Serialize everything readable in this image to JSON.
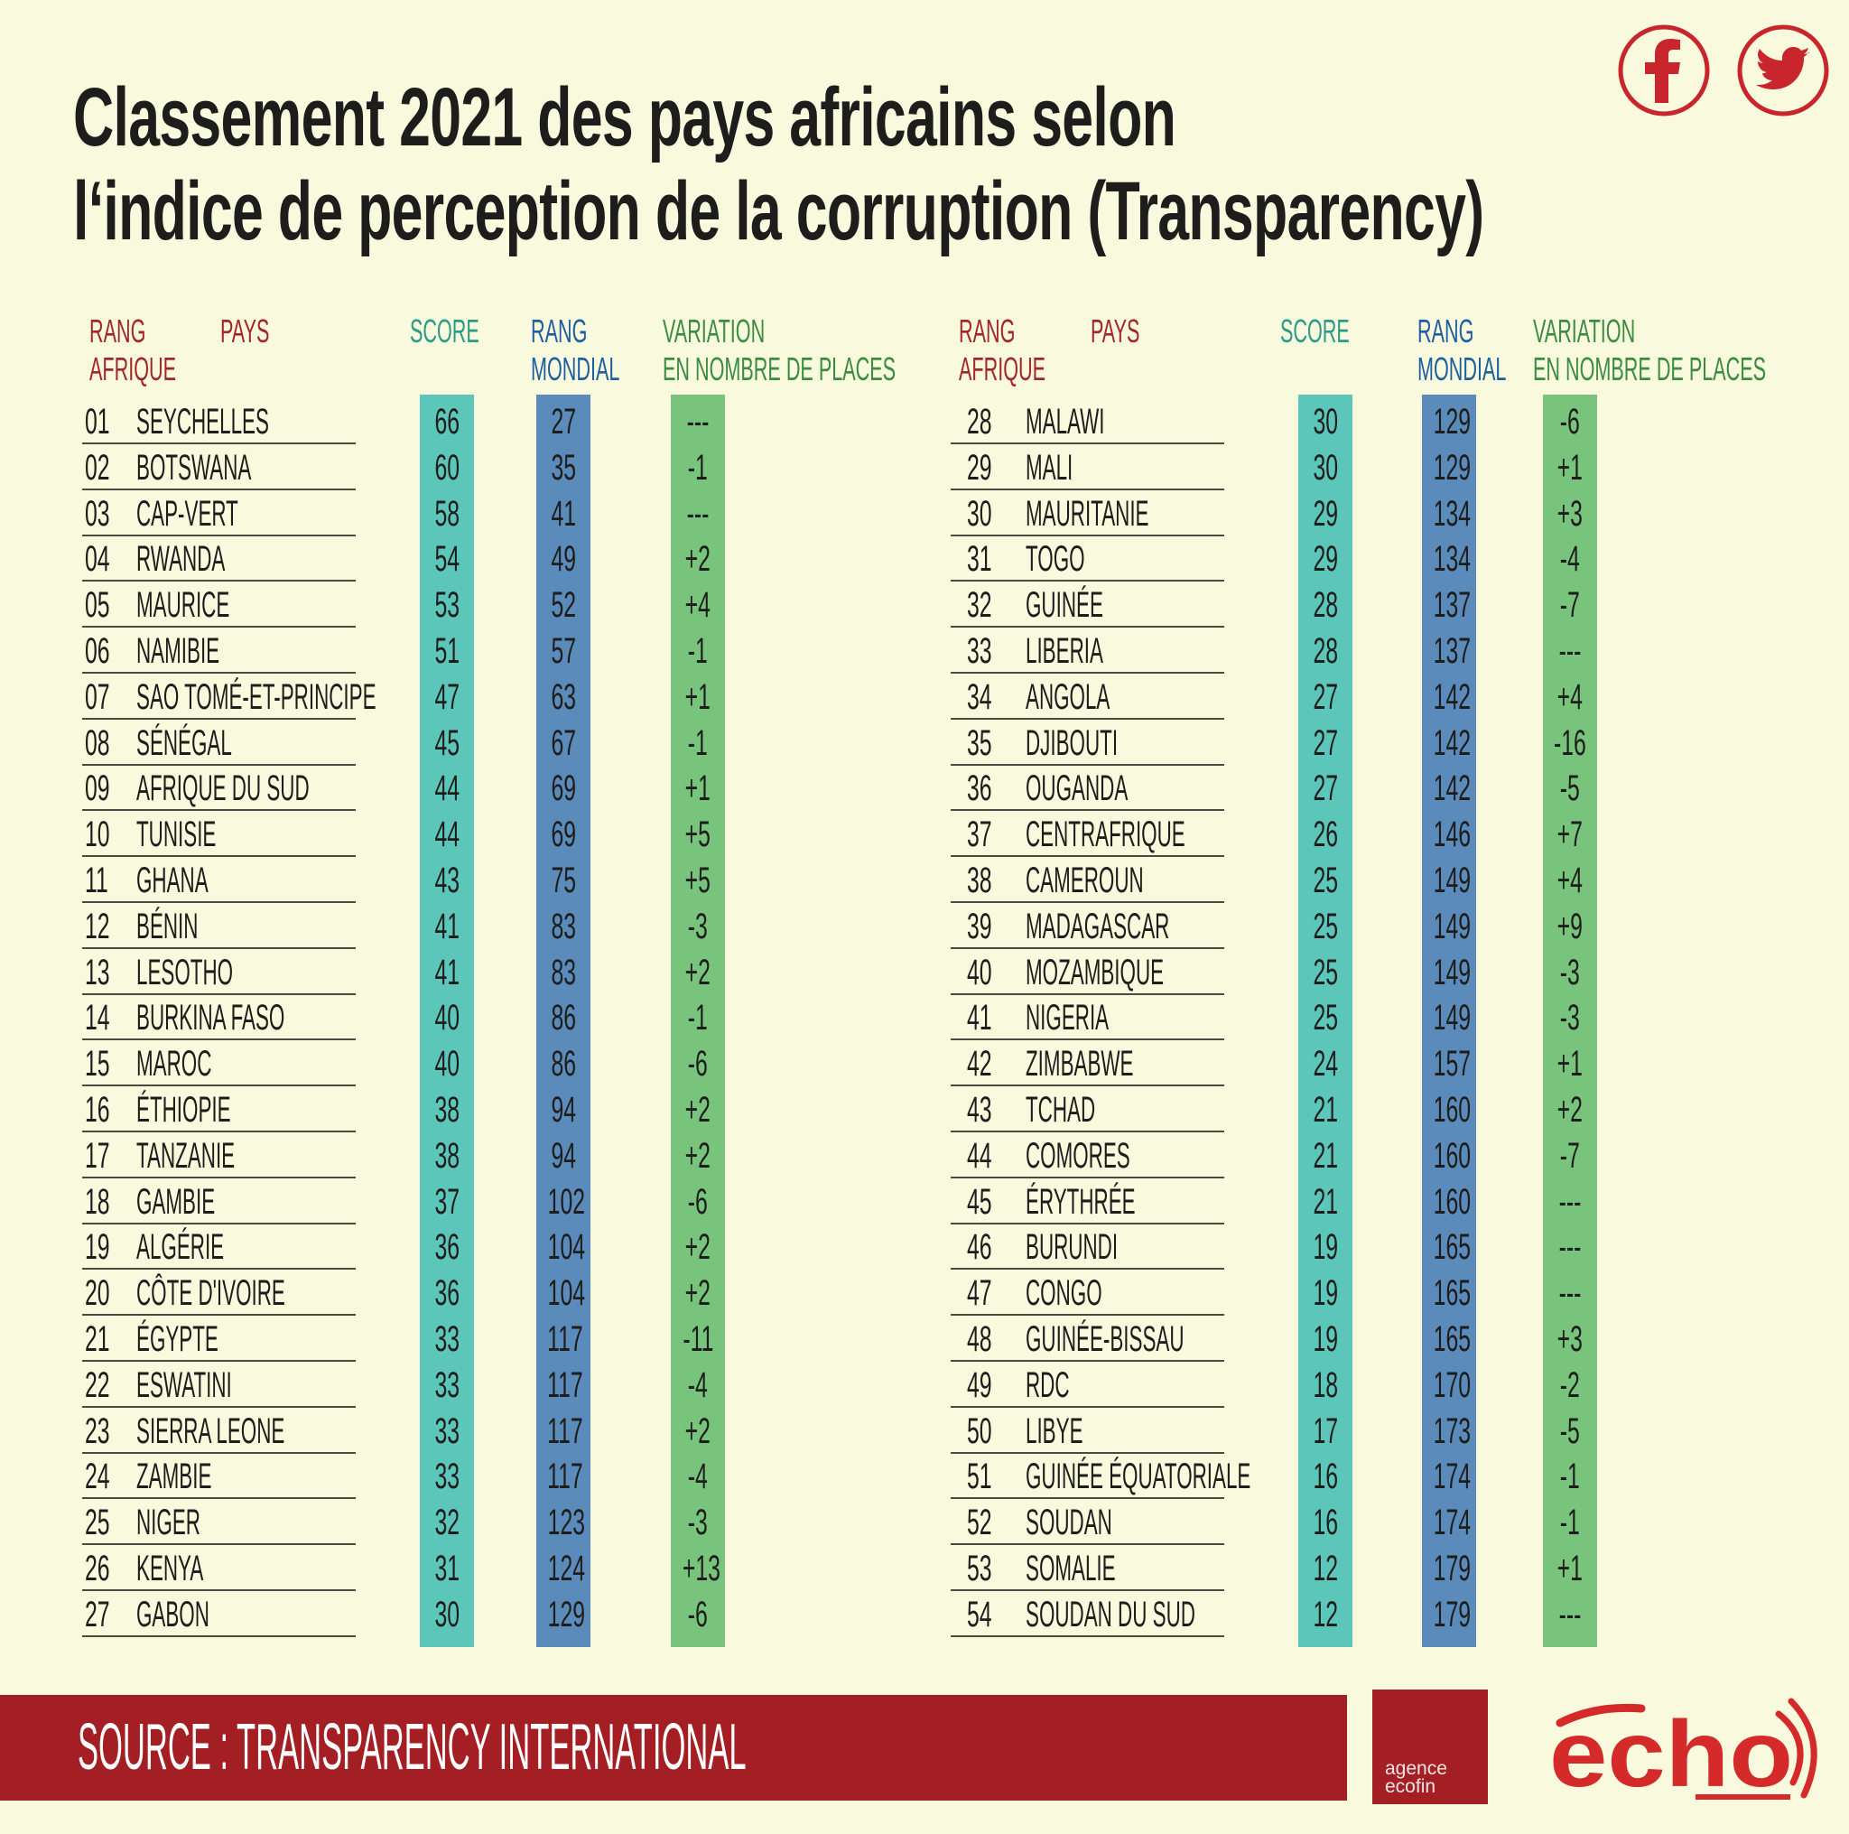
{
  "title": {
    "line1": "Classement 2021 des pays africains selon",
    "line2": "l‘indice de perception de la corruption (Transparency)"
  },
  "social": {
    "facebook_icon": "facebook-icon",
    "twitter_icon": "twitter-icon"
  },
  "colors": {
    "background": "#f8f9dd",
    "accent_red": "#a31f24",
    "score_bar": "#5cc6ba",
    "world_rank_bar": "#5b8bbb",
    "variation_bar": "#78c47c"
  },
  "headers": {
    "rang_line1": "RANG",
    "rang_line2": "AFRIQUE",
    "pays": "PAYS",
    "score": "SCORE",
    "mondial_line1": "RANG",
    "mondial_line2": "MONDIAL",
    "variation_line1": "VARIATION",
    "variation_line2": "EN NOMBRE DE PLACES"
  },
  "table": {
    "rows": [
      [
        "01",
        "SEYCHELLES",
        "66",
        "27",
        "---"
      ],
      [
        "02",
        "BOTSWANA",
        "60",
        "35",
        "-1"
      ],
      [
        "03",
        "CAP-VERT",
        "58",
        "41",
        "---"
      ],
      [
        "04",
        "RWANDA",
        "54",
        "49",
        "+2"
      ],
      [
        "05",
        "MAURICE",
        "53",
        "52",
        "+4"
      ],
      [
        "06",
        "NAMIBIE",
        "51",
        "57",
        "-1"
      ],
      [
        "07",
        "SAO TOMÉ-ET-PRINCIPE",
        "47",
        "63",
        "+1"
      ],
      [
        "08",
        "SÉNÉGAL",
        "45",
        "67",
        "-1"
      ],
      [
        "09",
        "AFRIQUE DU SUD",
        "44",
        "69",
        "+1"
      ],
      [
        "10",
        "TUNISIE",
        "44",
        "69",
        "+5"
      ],
      [
        "11",
        "GHANA",
        "43",
        "75",
        "+5"
      ],
      [
        "12",
        "BÉNIN",
        "41",
        "83",
        "-3"
      ],
      [
        "13",
        "LESOTHO",
        "41",
        "83",
        "+2"
      ],
      [
        "14",
        "BURKINA FASO",
        "40",
        "86",
        "-1"
      ],
      [
        "15",
        "MAROC",
        "40",
        "86",
        "-6"
      ],
      [
        "16",
        "ÉTHIOPIE",
        "38",
        "94",
        "+2"
      ],
      [
        "17",
        "TANZANIE",
        "38",
        "94",
        "+2"
      ],
      [
        "18",
        "GAMBIE",
        "37",
        "102",
        "-6"
      ],
      [
        "19",
        "ALGÉRIE",
        "36",
        "104",
        "+2"
      ],
      [
        "20",
        "CÔTE D'IVOIRE",
        "36",
        "104",
        "+2"
      ],
      [
        "21",
        "ÉGYPTE",
        "33",
        "117",
        "-11"
      ],
      [
        "22",
        "ESWATINI",
        "33",
        "117",
        "-4"
      ],
      [
        "23",
        "SIERRA LEONE",
        "33",
        "117",
        "+2"
      ],
      [
        "24",
        "ZAMBIE",
        "33",
        "117",
        "-4"
      ],
      [
        "25",
        "NIGER",
        "32",
        "123",
        "-3"
      ],
      [
        "26",
        "KENYA",
        "31",
        "124",
        "+13"
      ],
      [
        "27",
        "GABON",
        "30",
        "129",
        "-6"
      ],
      [
        "28",
        "MALAWI",
        "30",
        "129",
        "-6"
      ],
      [
        "29",
        "MALI",
        "30",
        "129",
        "+1"
      ],
      [
        "30",
        "MAURITANIE",
        "29",
        "134",
        "+3"
      ],
      [
        "31",
        "TOGO",
        "29",
        "134",
        "-4"
      ],
      [
        "32",
        "GUINÉE",
        "28",
        "137",
        "-7"
      ],
      [
        "33",
        "LIBERIA",
        "28",
        "137",
        "---"
      ],
      [
        "34",
        "ANGOLA",
        "27",
        "142",
        "+4"
      ],
      [
        "35",
        "DJIBOUTI",
        "27",
        "142",
        "-16"
      ],
      [
        "36",
        "OUGANDA",
        "27",
        "142",
        "-5"
      ],
      [
        "37",
        "CENTRAFRIQUE",
        "26",
        "146",
        "+7"
      ],
      [
        "38",
        "CAMEROUN",
        "25",
        "149",
        "+4"
      ],
      [
        "39",
        "MADAGASCAR",
        "25",
        "149",
        "+9"
      ],
      [
        "40",
        "MOZAMBIQUE",
        "25",
        "149",
        "-3"
      ],
      [
        "41",
        "NIGERIA",
        "25",
        "149",
        "-3"
      ],
      [
        "42",
        "ZIMBABWE",
        "24",
        "157",
        "+1"
      ],
      [
        "43",
        "TCHAD",
        "21",
        "160",
        "+2"
      ],
      [
        "44",
        "COMORES",
        "21",
        "160",
        "-7"
      ],
      [
        "45",
        "ÉRYTHRÉE",
        "21",
        "160",
        "---"
      ],
      [
        "46",
        "BURUNDI",
        "19",
        "165",
        "---"
      ],
      [
        "47",
        "CONGO",
        "19",
        "165",
        "---"
      ],
      [
        "48",
        "GUINÉE-BISSAU",
        "19",
        "165",
        "+3"
      ],
      [
        "49",
        "RDC",
        "18",
        "170",
        "-2"
      ],
      [
        "50",
        "LIBYE",
        "17",
        "173",
        "-5"
      ],
      [
        "51",
        "GUINÉE ÉQUATORIALE",
        "16",
        "174",
        "-1"
      ],
      [
        "52",
        "SOUDAN",
        "16",
        "174",
        "-1"
      ],
      [
        "53",
        "SOMALIE",
        "12",
        "179",
        "+1"
      ],
      [
        "54",
        "SOUDAN DU SUD",
        "12",
        "179",
        "---"
      ]
    ]
  },
  "footer": {
    "source": "SOURCE : TRANSPARENCY INTERNATIONAL",
    "ecofin_line1": "agence",
    "ecofin_line2": "ecofin",
    "echo_logo": "echo"
  }
}
